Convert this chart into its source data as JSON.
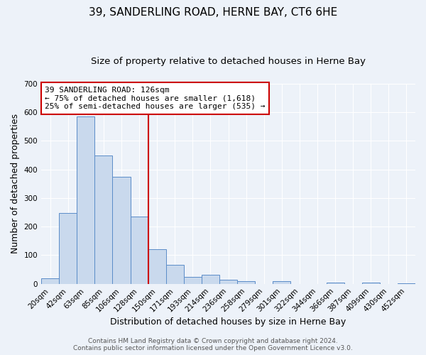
{
  "title": "39, SANDERLING ROAD, HERNE BAY, CT6 6HE",
  "subtitle": "Size of property relative to detached houses in Herne Bay",
  "xlabel": "Distribution of detached houses by size in Herne Bay",
  "ylabel": "Number of detached properties",
  "bar_labels": [
    "20sqm",
    "42sqm",
    "63sqm",
    "85sqm",
    "106sqm",
    "128sqm",
    "150sqm",
    "171sqm",
    "193sqm",
    "214sqm",
    "236sqm",
    "258sqm",
    "279sqm",
    "301sqm",
    "322sqm",
    "344sqm",
    "366sqm",
    "387sqm",
    "409sqm",
    "430sqm",
    "452sqm"
  ],
  "bar_heights": [
    18,
    247,
    585,
    449,
    374,
    236,
    120,
    67,
    25,
    31,
    14,
    10,
    0,
    10,
    0,
    0,
    5,
    0,
    5,
    0,
    3
  ],
  "bar_color": "#c9d9ed",
  "bar_edge_color": "#5b8cc8",
  "red_line_index": 5,
  "ylim": [
    0,
    700
  ],
  "yticks": [
    0,
    100,
    200,
    300,
    400,
    500,
    600,
    700
  ],
  "annotation_title": "39 SANDERLING ROAD: 126sqm",
  "annotation_line1": "← 75% of detached houses are smaller (1,618)",
  "annotation_line2": "25% of semi-detached houses are larger (535) →",
  "annotation_box_color": "#ffffff",
  "annotation_box_edge_color": "#cc0000",
  "footer_line1": "Contains HM Land Registry data © Crown copyright and database right 2024.",
  "footer_line2": "Contains public sector information licensed under the Open Government Licence v3.0.",
  "background_color": "#edf2f9",
  "grid_color": "#ffffff",
  "title_fontsize": 11,
  "subtitle_fontsize": 9.5,
  "axis_label_fontsize": 9,
  "tick_fontsize": 7.5,
  "footer_fontsize": 6.5
}
